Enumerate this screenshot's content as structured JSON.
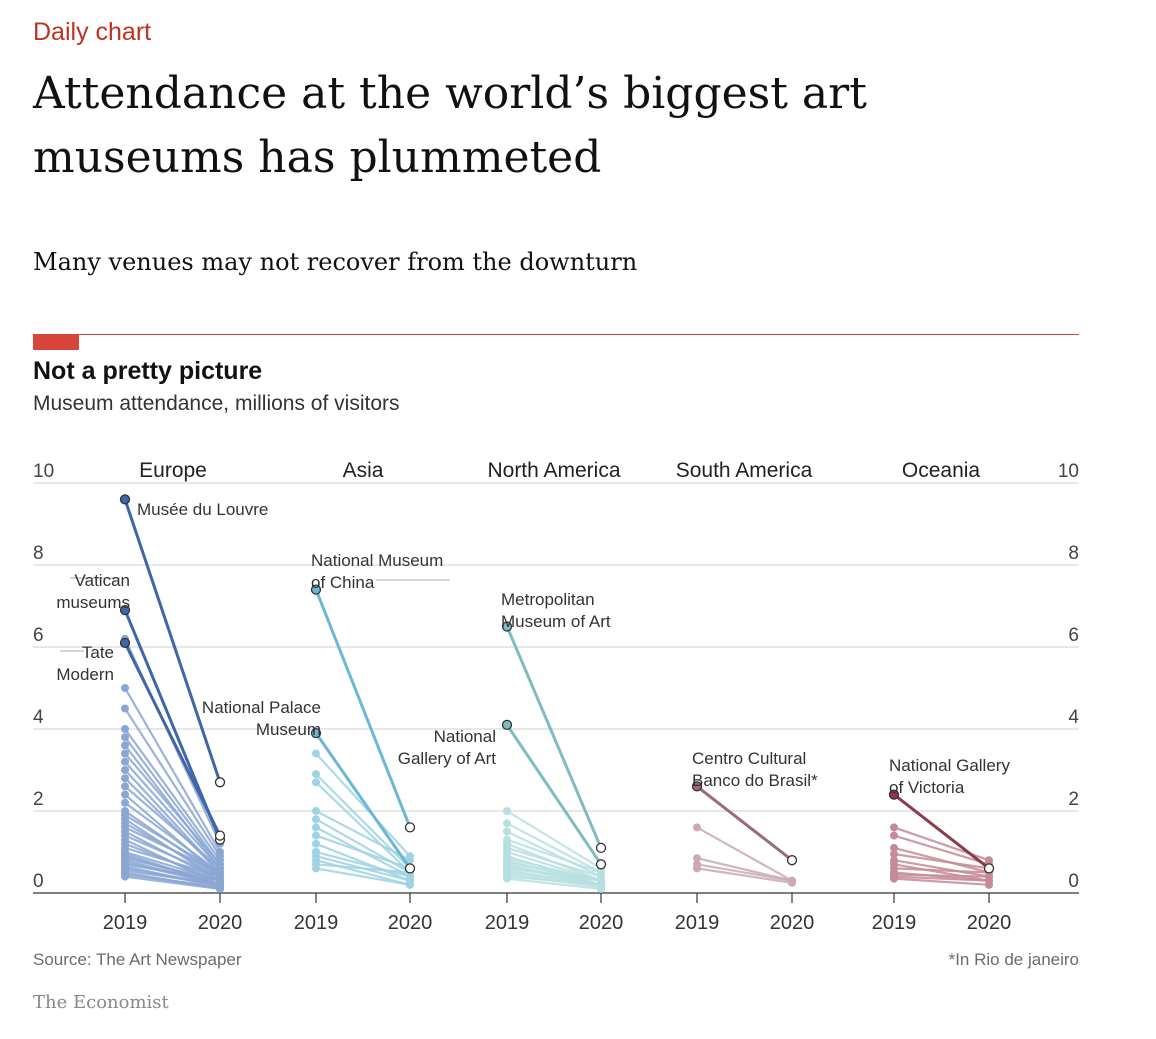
{
  "header": {
    "kicker": "Daily chart",
    "headline": "Attendance at the world’s biggest art museums has plummeted",
    "standfirst": "Many venues may not recover from the downturn"
  },
  "chart_title": "Not a pretty picture",
  "chart_subtitle": "Museum attendance, millions of visitors",
  "source": "Source: The Art Newspaper",
  "footnote": "*In Rio de janeiro",
  "brand": "The Economist",
  "colors": {
    "accent_red": "#d6443a",
    "kicker_red": "#c0311f",
    "europe": "#3f66a8",
    "asia": "#6cb8d4",
    "north_america": "#9fcfd2",
    "south_america": "#9a6c78",
    "oceania": "#8c3a4c"
  },
  "chart_data": {
    "type": "line",
    "ylabel": "Museum attendance, millions of visitors",
    "ylim": [
      0,
      10
    ],
    "yticks": [
      "0",
      "2",
      "4",
      "6",
      "8",
      "10"
    ],
    "x": [
      "2019",
      "2020"
    ],
    "grid": true,
    "panels": [
      {
        "region": "Europe",
        "highlighted": [
          {
            "name": "Musée du Louvre",
            "values": [
              9.6,
              2.7
            ]
          },
          {
            "name": "Vatican museums",
            "values": [
              6.9,
              1.3
            ]
          },
          {
            "name": "Tate Modern",
            "values": [
              6.1,
              1.4
            ]
          }
        ],
        "others": [
          [
            6.2,
            1.2
          ],
          [
            5.0,
            1.0
          ],
          [
            4.5,
            0.9
          ],
          [
            4.0,
            0.8
          ],
          [
            3.8,
            0.7
          ],
          [
            3.6,
            0.6
          ],
          [
            3.4,
            0.7
          ],
          [
            3.2,
            0.6
          ],
          [
            3.0,
            0.5
          ],
          [
            2.8,
            0.5
          ],
          [
            2.6,
            0.6
          ],
          [
            2.4,
            0.4
          ],
          [
            2.2,
            0.5
          ],
          [
            2.0,
            0.4
          ],
          [
            1.9,
            0.5
          ],
          [
            1.8,
            0.3
          ],
          [
            1.7,
            0.4
          ],
          [
            1.6,
            0.5
          ],
          [
            1.5,
            0.3
          ],
          [
            1.4,
            0.4
          ],
          [
            1.3,
            0.2
          ],
          [
            1.2,
            0.3
          ],
          [
            1.1,
            0.4
          ],
          [
            1.0,
            0.3
          ],
          [
            0.95,
            0.2
          ],
          [
            0.9,
            0.2
          ],
          [
            0.85,
            0.3
          ],
          [
            0.8,
            0.2
          ],
          [
            0.75,
            0.2
          ],
          [
            0.7,
            0.3
          ],
          [
            0.65,
            0.15
          ],
          [
            0.6,
            0.2
          ],
          [
            0.55,
            0.2
          ],
          [
            0.5,
            0.1
          ],
          [
            0.45,
            0.15
          ],
          [
            0.4,
            0.1
          ]
        ]
      },
      {
        "region": "Asia",
        "highlighted": [
          {
            "name": "National Museum of China",
            "values": [
              7.4,
              1.6
            ]
          },
          {
            "name": "National Palace Museum",
            "values": [
              3.9,
              0.6
            ]
          }
        ],
        "others": [
          [
            3.4,
            0.9
          ],
          [
            2.9,
            0.6
          ],
          [
            2.7,
            0.5
          ],
          [
            2.0,
            0.8
          ],
          [
            1.8,
            0.5
          ],
          [
            1.6,
            0.4
          ],
          [
            1.4,
            0.6
          ],
          [
            1.2,
            0.3
          ],
          [
            1.0,
            0.4
          ],
          [
            0.9,
            0.3
          ],
          [
            0.8,
            0.2
          ],
          [
            0.7,
            0.5
          ],
          [
            0.6,
            0.2
          ]
        ]
      },
      {
        "region": "North America",
        "highlighted": [
          {
            "name": "Metropolitan Museum of Art",
            "values": [
              6.5,
              1.1
            ]
          },
          {
            "name": "National Gallery of Art",
            "values": [
              4.1,
              0.7
            ]
          }
        ],
        "others": [
          [
            2.0,
            0.6
          ],
          [
            1.7,
            0.5
          ],
          [
            1.5,
            0.4
          ],
          [
            1.3,
            0.5
          ],
          [
            1.2,
            0.3
          ],
          [
            1.1,
            0.4
          ],
          [
            1.0,
            0.3
          ],
          [
            0.9,
            0.2
          ],
          [
            0.85,
            0.3
          ],
          [
            0.8,
            0.2
          ],
          [
            0.75,
            0.3
          ],
          [
            0.7,
            0.2
          ],
          [
            0.65,
            0.2
          ],
          [
            0.6,
            0.3
          ],
          [
            0.55,
            0.2
          ],
          [
            0.5,
            0.2
          ],
          [
            0.45,
            0.15
          ],
          [
            0.4,
            0.2
          ],
          [
            0.35,
            0.1
          ]
        ]
      },
      {
        "region": "South America",
        "highlighted": [
          {
            "name": "Centro Cultural Banco do Brasil*",
            "values": [
              2.6,
              0.8
            ]
          }
        ],
        "others": [
          [
            1.6,
            0.3
          ],
          [
            0.85,
            0.3
          ],
          [
            0.7,
            0.3
          ],
          [
            0.6,
            0.25
          ]
        ]
      },
      {
        "region": "Oceania",
        "highlighted": [
          {
            "name": "National Gallery of Victoria",
            "values": [
              2.4,
              0.6
            ]
          }
        ],
        "others": [
          [
            1.6,
            0.8
          ],
          [
            1.4,
            0.7
          ],
          [
            1.1,
            0.5
          ],
          [
            0.95,
            0.6
          ],
          [
            0.8,
            0.4
          ],
          [
            0.7,
            0.3
          ],
          [
            0.6,
            0.5
          ],
          [
            0.5,
            0.3
          ],
          [
            0.45,
            0.4
          ],
          [
            0.4,
            0.3
          ],
          [
            0.35,
            0.2
          ]
        ]
      }
    ]
  }
}
